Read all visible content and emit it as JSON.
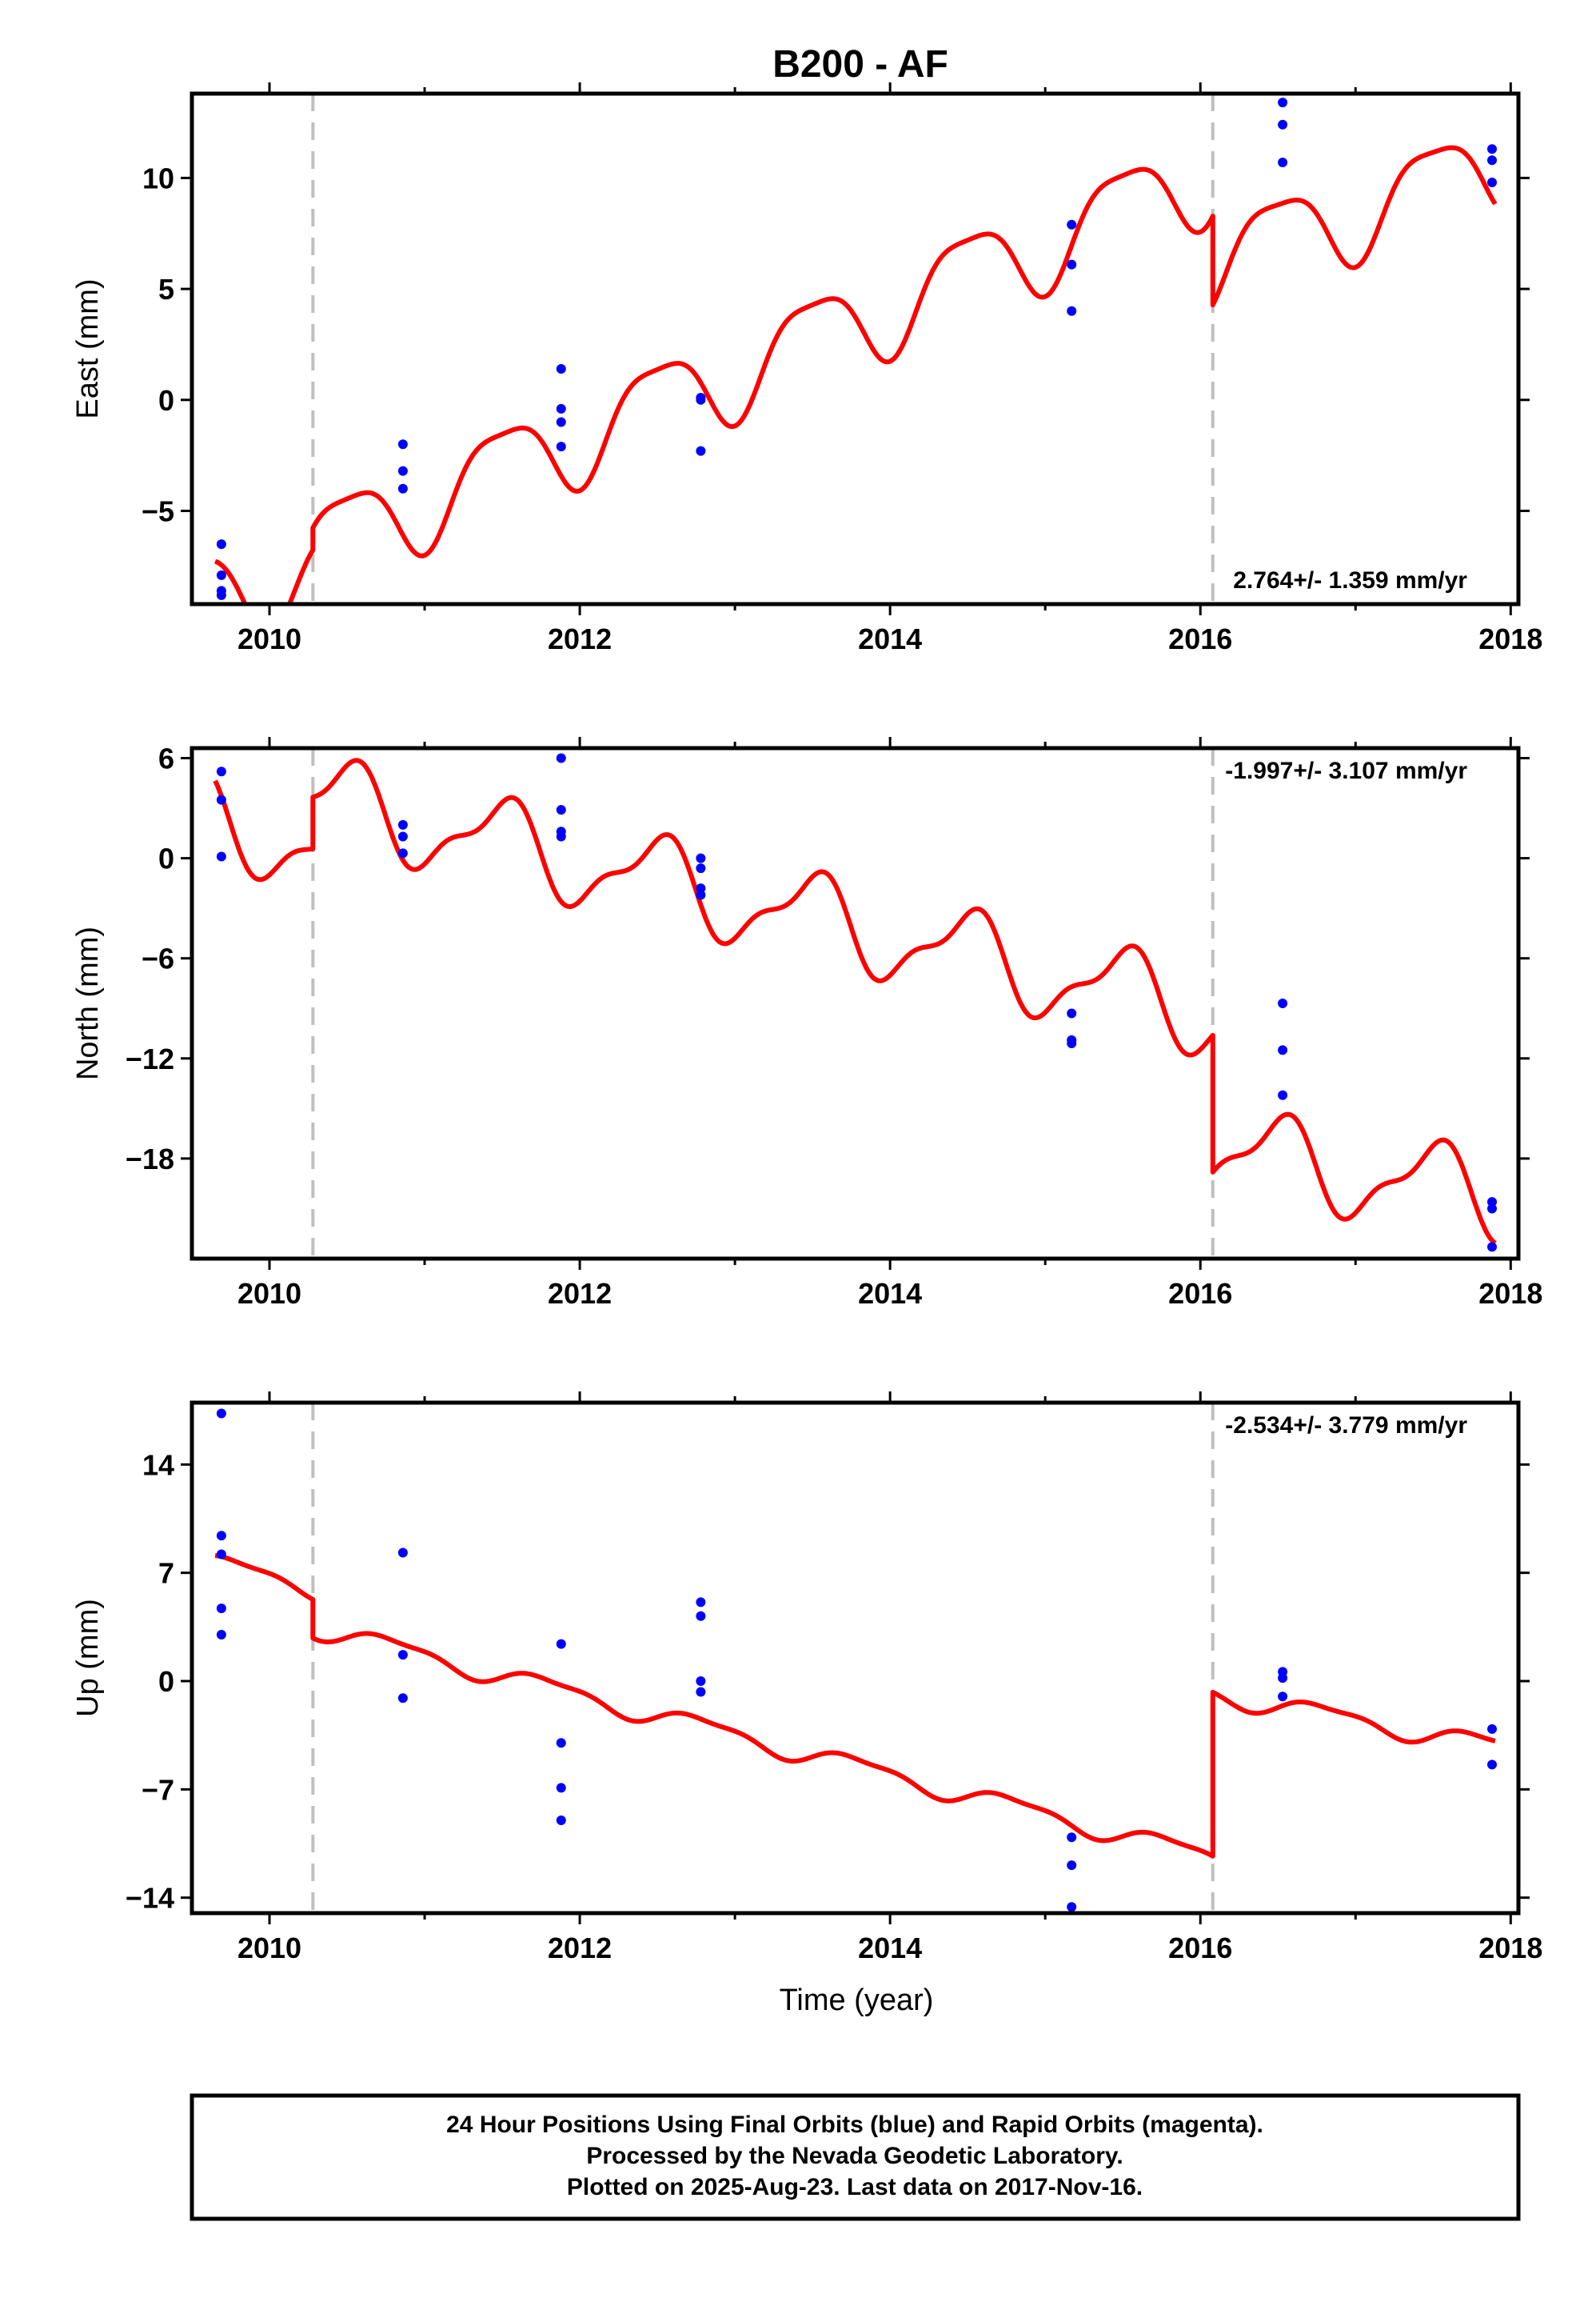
{
  "title": "B200 - AF",
  "xlabel": "Time (year)",
  "footer": {
    "line1": "24 Hour Positions Using Final Orbits (blue) and Rapid Orbits (magenta).",
    "line2": "Processed by the Nevada Geodetic Laboratory.",
    "line3": "Plotted on 2025-Aug-23. Last data on 2017-Nov-16."
  },
  "colors": {
    "data": "#0000ff",
    "model": "#ff0000",
    "event_line": "#bfbfbf",
    "frame": "#000000"
  },
  "chart_data": [
    {
      "type": "scatter",
      "component": "east",
      "ylabel": "East (mm)",
      "xlim": [
        2009.5,
        2018.05
      ],
      "ylim": [
        -9.2,
        13.8
      ],
      "xticks": [
        2010,
        2012,
        2014,
        2016,
        2018
      ],
      "yticks": [
        -5,
        0,
        5,
        10
      ],
      "rate_text": "2.764+/- 1.359 mm/yr",
      "rate_position": "bottom-right",
      "event_lines": [
        2010.28,
        2016.08
      ],
      "points": [
        [
          2009.69,
          -6.5
        ],
        [
          2009.69,
          -7.9
        ],
        [
          2009.69,
          -8.6
        ],
        [
          2009.69,
          -8.8
        ],
        [
          2010.86,
          -2.0
        ],
        [
          2010.86,
          -3.2
        ],
        [
          2010.86,
          -4.0
        ],
        [
          2011.88,
          1.4
        ],
        [
          2011.88,
          -0.4
        ],
        [
          2011.88,
          -1.0
        ],
        [
          2011.88,
          -2.1
        ],
        [
          2012.78,
          0.1
        ],
        [
          2012.78,
          0.0
        ],
        [
          2012.78,
          -2.3
        ],
        [
          2015.17,
          7.9
        ],
        [
          2015.17,
          6.1
        ],
        [
          2015.17,
          4.0
        ],
        [
          2016.53,
          13.4
        ],
        [
          2016.53,
          12.4
        ],
        [
          2016.53,
          10.7
        ],
        [
          2017.88,
          11.3
        ],
        [
          2017.88,
          10.8
        ],
        [
          2017.88,
          9.8
        ]
      ],
      "model": {
        "base": [
          [
            2009.65,
            -8.6
          ],
          [
            2010.28,
            -7.6
          ],
          [
            2010.28,
            -6.6
          ],
          [
            2016.08,
            10.3
          ],
          [
            2016.08,
            6.3
          ],
          [
            2017.9,
            10.6
          ]
        ],
        "annual_amp": 2.0,
        "annual_phase_year": 2010.5,
        "semiannual_amp": 0.5,
        "semiannual_phase_year": 2010.25
      }
    },
    {
      "type": "scatter",
      "component": "north",
      "ylabel": "North (mm)",
      "xlim": [
        2009.5,
        2018.05
      ],
      "ylim": [
        -24.0,
        6.6
      ],
      "xticks": [
        2010,
        2012,
        2014,
        2016,
        2018
      ],
      "yticks": [
        6,
        0,
        -6,
        -12,
        -18
      ],
      "rate_text": "-1.997+/- 3.107 mm/yr",
      "rate_position": "top-right",
      "event_lines": [
        2010.28,
        2016.08
      ],
      "points": [
        [
          2009.69,
          5.2
        ],
        [
          2009.69,
          3.5
        ],
        [
          2009.69,
          0.1
        ],
        [
          2010.86,
          2.0
        ],
        [
          2010.86,
          1.3
        ],
        [
          2010.86,
          0.3
        ],
        [
          2011.88,
          6.0
        ],
        [
          2011.88,
          2.9
        ],
        [
          2011.88,
          1.6
        ],
        [
          2011.88,
          1.3
        ],
        [
          2012.78,
          0.0
        ],
        [
          2012.78,
          -0.6
        ],
        [
          2012.78,
          -1.8
        ],
        [
          2012.78,
          -2.2
        ],
        [
          2015.17,
          -9.3
        ],
        [
          2015.17,
          -10.9
        ],
        [
          2015.17,
          -11.1
        ],
        [
          2016.53,
          -8.7
        ],
        [
          2016.53,
          -11.5
        ],
        [
          2016.53,
          -14.2
        ],
        [
          2017.88,
          -20.6
        ],
        [
          2017.88,
          -21.0
        ],
        [
          2017.88,
          -23.3
        ]
      ],
      "model": {
        "base": [
          [
            2009.65,
            2.4
          ],
          [
            2010.28,
            0.5
          ],
          [
            2010.28,
            3.6
          ],
          [
            2016.08,
            -9.3
          ],
          [
            2016.08,
            -17.5
          ],
          [
            2017.9,
            -20.3
          ]
        ],
        "annual_amp": 2.4,
        "annual_phase_year": 2010.5,
        "semiannual_amp": 0.9,
        "semiannual_phase_year": 2010.12
      }
    },
    {
      "type": "scatter",
      "component": "up",
      "ylabel": "Up (mm)",
      "xlim": [
        2009.5,
        2018.05
      ],
      "ylim": [
        -15.0,
        18.0
      ],
      "xticks": [
        2010,
        2012,
        2014,
        2016,
        2018
      ],
      "yticks": [
        14,
        7,
        0,
        -7,
        -14
      ],
      "rate_text": "-2.534+/- 3.779 mm/yr",
      "rate_position": "top-right",
      "event_lines": [
        2010.28,
        2016.08
      ],
      "points": [
        [
          2009.69,
          17.3
        ],
        [
          2009.69,
          9.4
        ],
        [
          2009.69,
          8.2
        ],
        [
          2009.69,
          4.7
        ],
        [
          2009.69,
          3.0
        ],
        [
          2010.86,
          8.3
        ],
        [
          2010.86,
          1.7
        ],
        [
          2010.86,
          -1.1
        ],
        [
          2011.88,
          2.4
        ],
        [
          2011.88,
          -4.0
        ],
        [
          2011.88,
          -6.9
        ],
        [
          2011.88,
          -9.0
        ],
        [
          2012.78,
          5.1
        ],
        [
          2012.78,
          4.2
        ],
        [
          2012.78,
          0.0
        ],
        [
          2012.78,
          -0.7
        ],
        [
          2015.17,
          -10.1
        ],
        [
          2015.17,
          -11.9
        ],
        [
          2015.17,
          -14.6
        ],
        [
          2016.53,
          0.6
        ],
        [
          2016.53,
          0.2
        ],
        [
          2016.53,
          -1.0
        ],
        [
          2017.88,
          -3.1
        ],
        [
          2017.88,
          -5.4
        ]
      ],
      "model": {
        "base": [
          [
            2009.65,
            7.6
          ],
          [
            2010.28,
            6.0
          ],
          [
            2010.28,
            3.5
          ],
          [
            2016.08,
            -11.4
          ],
          [
            2016.08,
            -0.8
          ],
          [
            2017.9,
            -4.2
          ]
        ],
        "annual_amp": 0.6,
        "annual_phase_year": 2009.8,
        "semiannual_amp": 0.2,
        "semiannual_phase_year": 2009.6
      }
    }
  ]
}
